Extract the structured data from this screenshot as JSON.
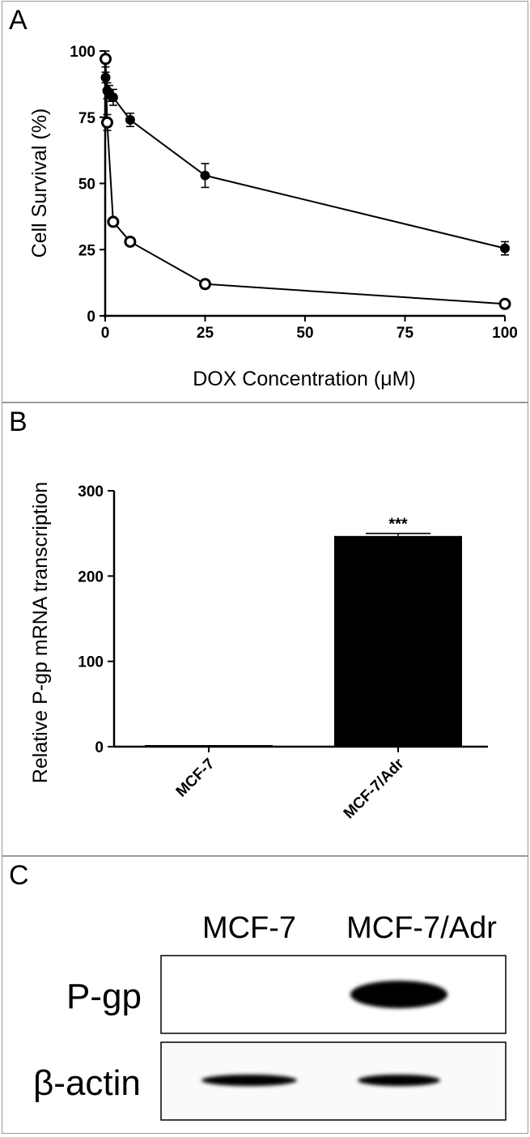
{
  "panels": {
    "a": {
      "label": "A"
    },
    "b": {
      "label": "B"
    },
    "c": {
      "label": "C"
    }
  },
  "chart_data": [
    {
      "type": "line",
      "panel": "A",
      "title": "",
      "xlabel": "DOX Concentration (μM)",
      "ylabel": "Cell Survival (%)",
      "xlim": [
        0,
        100
      ],
      "ylim": [
        0,
        100
      ],
      "xticks": [
        "0",
        "25",
        "50",
        "75",
        "100"
      ],
      "yticks": [
        "0",
        "25",
        "50",
        "75",
        "100"
      ],
      "series": [
        {
          "marker": "filled-circle",
          "x": [
            0.1,
            0.5,
            1,
            2,
            6.25,
            25,
            100
          ],
          "y": [
            90,
            85,
            84,
            82.5,
            74,
            53,
            25.5
          ],
          "err": [
            2,
            3,
            3,
            3,
            2.5,
            4.5,
            2.5
          ]
        },
        {
          "marker": "open-circle",
          "x": [
            0.1,
            0.5,
            2,
            6.25,
            25,
            100
          ],
          "y": [
            97,
            73,
            35.5,
            28,
            12,
            4.5
          ],
          "err": [
            3,
            3,
            1,
            1,
            0.5,
            0.5
          ]
        }
      ]
    },
    {
      "type": "bar",
      "panel": "B",
      "title": "",
      "xlabel": "",
      "ylabel": "Relative P-gp mRNA transcription",
      "categories": [
        "MCF-7",
        "MCF-7/Adr"
      ],
      "values": [
        1,
        247
      ],
      "err": [
        0.5,
        3
      ],
      "ylim": [
        0,
        300
      ],
      "yticks": [
        "0",
        "100",
        "200",
        "300"
      ],
      "annotations": [
        {
          "category": "MCF-7/Adr",
          "text": "***"
        }
      ]
    }
  ],
  "blot": {
    "columns": [
      "MCF-7",
      "MCF-7/Adr"
    ],
    "rows": [
      {
        "label": "P-gp",
        "intensity": [
          0,
          1
        ]
      },
      {
        "label": "β-actin",
        "intensity": [
          1,
          0.85
        ]
      }
    ]
  }
}
